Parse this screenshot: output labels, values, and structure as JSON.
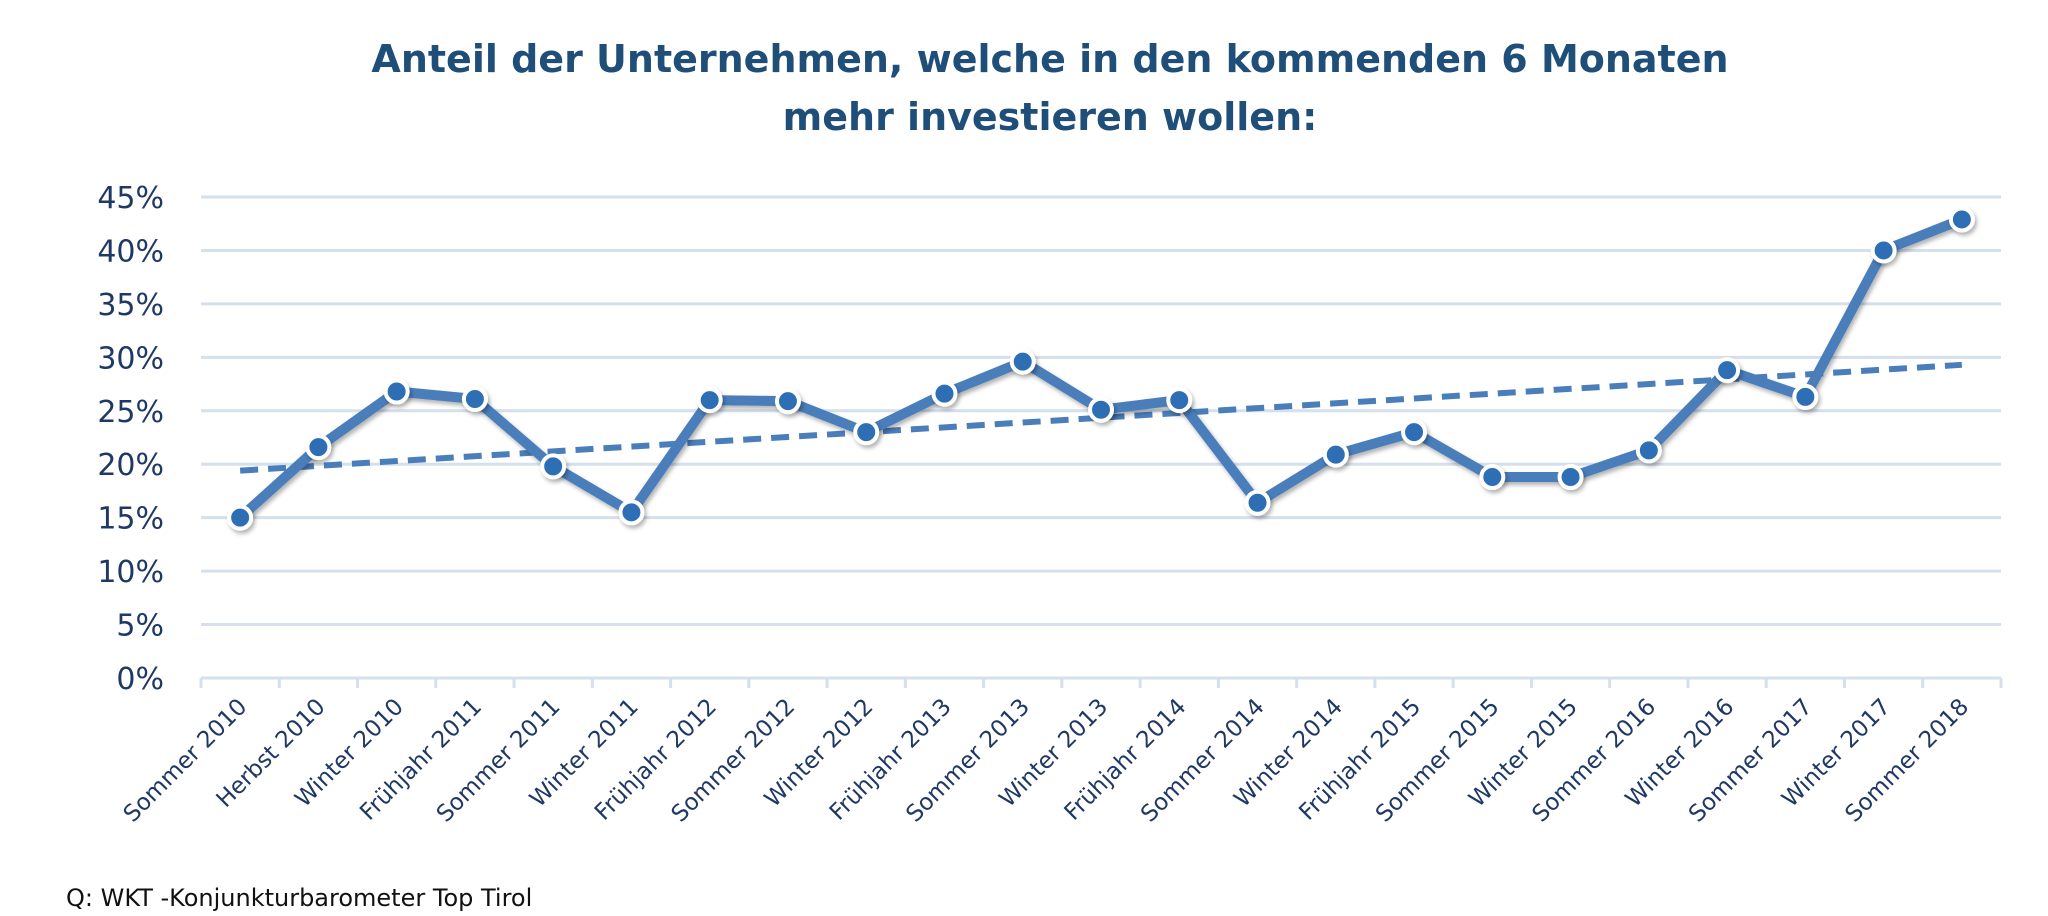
{
  "chart_data": {
    "type": "line",
    "title": "Anteil der Unternehmen, welche in den kommenden 6 Monaten mehr investieren wollen:",
    "title_lines": [
      "Anteil der Unternehmen, welche in den kommenden 6 Monaten",
      "mehr investieren wollen:"
    ],
    "xlabel": "",
    "ylabel": "",
    "categories": [
      "Sommer 2010",
      "Herbst 2010",
      "Winter 2010",
      "Frühjahr 2011",
      "Sommer 2011",
      "Winter 2011",
      "Frühjahr 2012",
      "Sommer 2012",
      "Winter 2012",
      "Frühjahr 2013",
      "Sommer 2013",
      "Winter 2013",
      "Frühjahr 2014",
      "Sommer 2014",
      "Winter 2014",
      "Frühjahr 2015",
      "Sommer 2015",
      "Winter 2015",
      "Sommer 2016",
      "Winter 2016",
      "Sommer 2017",
      "Winter 2017",
      "Sommer 2018"
    ],
    "series": [
      {
        "values": [
          15.0,
          21.6,
          26.8,
          26.1,
          19.8,
          15.5,
          26.0,
          25.9,
          23.0,
          26.6,
          29.6,
          25.1,
          26.0,
          16.4,
          20.9,
          23.0,
          18.8,
          18.8,
          21.3,
          28.8,
          26.3,
          40.0,
          42.9
        ]
      }
    ],
    "trendline": {
      "type": "linear",
      "style": "dashed",
      "start": 19.4,
      "end": 29.3
    },
    "ylim": [
      0,
      45
    ],
    "yticks": [
      "0%",
      "5%",
      "10%",
      "15%",
      "20%",
      "25%",
      "30%",
      "35%",
      "40%",
      "45%"
    ],
    "grid": true,
    "legend": "none",
    "colors": {
      "line": "#4a7ebb",
      "marker": "#2f6eb5",
      "grid": "#d6dfec",
      "title": "#1f4e79",
      "axis_text": "#1f3864"
    }
  },
  "source": "Q: WKT -Konjunkturbarometer Top Tirol"
}
